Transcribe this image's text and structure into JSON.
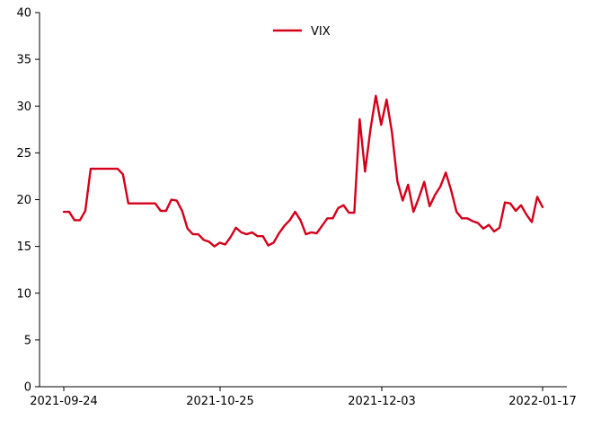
{
  "chart_data": {
    "type": "line",
    "title": "",
    "xlabel": "",
    "ylabel": "",
    "ylim": [
      0,
      40
    ],
    "y_ticks": [
      "0",
      "5",
      "10",
      "15",
      "20",
      "25",
      "30",
      "35",
      "40"
    ],
    "x_tick_labels": [
      "2021-09-24",
      "2021-10-25",
      "2021-12-03",
      "2022-01-17"
    ],
    "x_tick_dates": [
      "2021-09-24",
      "2021-10-25",
      "2021-12-03",
      "2022-01-17"
    ],
    "legend_position": "top-center",
    "grid": false,
    "colors": {
      "vix": "#d4001a",
      "axis": "#000000"
    },
    "series": [
      {
        "name": "VIX",
        "color": "#d4001a",
        "points": [
          [
            "2021-09-24",
            18.7
          ],
          [
            "2021-09-25",
            18.7
          ],
          [
            "2021-09-26",
            17.8
          ],
          [
            "2021-09-27",
            17.8
          ],
          [
            "2021-09-28",
            18.8
          ],
          [
            "2021-09-29",
            23.3
          ],
          [
            "2021-09-30",
            23.3
          ],
          [
            "2021-10-01",
            23.3
          ],
          [
            "2021-10-02",
            23.3
          ],
          [
            "2021-10-03",
            23.3
          ],
          [
            "2021-10-04",
            23.3
          ],
          [
            "2021-10-05",
            22.7
          ],
          [
            "2021-10-06",
            19.6
          ],
          [
            "2021-10-07",
            19.6
          ],
          [
            "2021-10-08",
            19.6
          ],
          [
            "2021-10-09",
            19.6
          ],
          [
            "2021-10-10",
            19.6
          ],
          [
            "2021-10-11",
            19.6
          ],
          [
            "2021-10-12",
            18.8
          ],
          [
            "2021-10-13",
            18.8
          ],
          [
            "2021-10-14",
            20.0
          ],
          [
            "2021-10-15",
            19.9
          ],
          [
            "2021-10-16",
            18.8
          ],
          [
            "2021-10-17",
            16.9
          ],
          [
            "2021-10-18",
            16.3
          ],
          [
            "2021-10-19",
            16.3
          ],
          [
            "2021-10-20",
            15.7
          ],
          [
            "2021-10-21",
            15.5
          ],
          [
            "2021-10-22",
            15.0
          ],
          [
            "2021-10-23",
            15.4
          ],
          [
            "2021-10-24",
            15.2
          ],
          [
            "2021-10-25",
            16.0
          ],
          [
            "2021-10-26",
            17.0
          ],
          [
            "2021-10-27",
            16.5
          ],
          [
            "2021-10-28",
            16.3
          ],
          [
            "2021-10-29",
            16.5
          ],
          [
            "2021-10-30",
            16.1
          ],
          [
            "2021-10-31",
            16.1
          ],
          [
            "2021-11-01",
            15.1
          ],
          [
            "2021-11-02",
            15.4
          ],
          [
            "2021-11-03",
            16.4
          ],
          [
            "2021-11-04",
            17.2
          ],
          [
            "2021-11-05",
            17.8
          ],
          [
            "2021-11-06",
            18.7
          ],
          [
            "2021-11-07",
            17.8
          ],
          [
            "2021-11-08",
            16.3
          ],
          [
            "2021-11-09",
            16.5
          ],
          [
            "2021-11-10",
            16.4
          ],
          [
            "2021-11-11",
            17.2
          ],
          [
            "2021-11-12",
            18.0
          ],
          [
            "2021-11-13",
            18.0
          ],
          [
            "2021-11-14",
            19.1
          ],
          [
            "2021-11-15",
            19.4
          ],
          [
            "2021-11-16",
            18.6
          ],
          [
            "2021-11-17",
            18.6
          ],
          [
            "2021-11-18",
            28.6
          ],
          [
            "2021-11-19",
            23.0
          ],
          [
            "2021-11-20",
            27.5
          ],
          [
            "2021-11-21",
            31.1
          ],
          [
            "2021-11-22",
            28.0
          ],
          [
            "2021-11-23",
            30.7
          ],
          [
            "2021-11-24",
            27.2
          ],
          [
            "2021-11-25",
            22.0
          ],
          [
            "2021-11-26",
            19.9
          ],
          [
            "2021-11-27",
            21.6
          ],
          [
            "2021-11-28",
            18.7
          ],
          [
            "2021-11-29",
            20.2
          ],
          [
            "2021-11-30",
            21.9
          ],
          [
            "2021-12-01",
            19.3
          ],
          [
            "2021-12-02",
            20.5
          ],
          [
            "2021-12-03",
            21.4
          ],
          [
            "2021-12-04",
            22.9
          ],
          [
            "2021-12-05",
            21.0
          ],
          [
            "2021-12-06",
            18.7
          ],
          [
            "2021-12-07",
            18.0
          ],
          [
            "2021-12-08",
            18.0
          ],
          [
            "2021-12-09",
            17.7
          ],
          [
            "2021-12-10",
            17.5
          ],
          [
            "2021-12-11",
            16.9
          ],
          [
            "2021-12-12",
            17.3
          ],
          [
            "2021-12-13",
            16.6
          ],
          [
            "2021-12-14",
            17.0
          ],
          [
            "2021-12-15",
            19.7
          ],
          [
            "2021-12-16",
            19.6
          ],
          [
            "2021-12-17",
            18.8
          ],
          [
            "2021-12-18",
            19.4
          ],
          [
            "2021-12-19",
            18.4
          ],
          [
            "2021-12-20",
            17.6
          ],
          [
            "2021-12-21",
            20.3
          ],
          [
            "2021-12-22",
            19.2
          ]
        ]
      }
    ]
  }
}
